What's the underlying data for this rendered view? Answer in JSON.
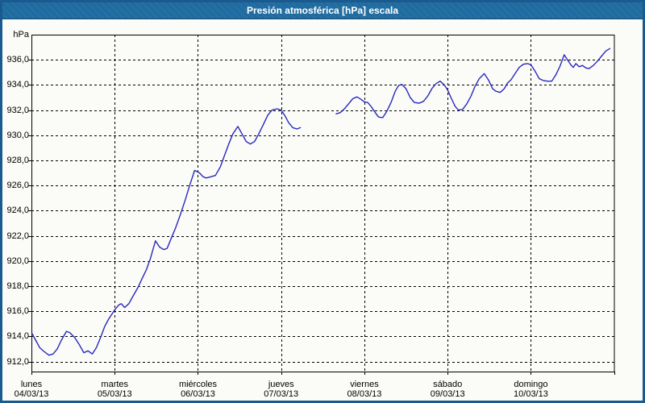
{
  "window": {
    "title": "Presión atmosférica [hPa] escala"
  },
  "chart_data": {
    "type": "line",
    "title": "Presión atmosférica [hPa] escala",
    "xlabel": "",
    "ylabel": "hPa",
    "ylim": [
      911.2,
      938.0
    ],
    "xlim_days": [
      0,
      7
    ],
    "grid": true,
    "legend": "none",
    "line_color": "#2828be",
    "grid_color": "#000000",
    "y_ticks": [
      912,
      914,
      916,
      918,
      920,
      922,
      924,
      926,
      928,
      930,
      932,
      934,
      936
    ],
    "y_tick_labels": [
      "912,0",
      "914,0",
      "916,0",
      "918,0",
      "920,0",
      "922,0",
      "924,0",
      "926,0",
      "928,0",
      "930,0",
      "932,0",
      "934,0",
      "936,0"
    ],
    "x_ticks": [
      {
        "day": "lunes",
        "date": "04/03/13"
      },
      {
        "day": "martes",
        "date": "05/03/13"
      },
      {
        "day": "miércoles",
        "date": "06/03/13"
      },
      {
        "day": "jueves",
        "date": "07/03/13"
      },
      {
        "day": "viernes",
        "date": "08/03/13"
      },
      {
        "day": "sábado",
        "date": "09/03/13"
      },
      {
        "day": "domingo",
        "date": "10/03/13"
      }
    ],
    "series": [
      {
        "name": "Presión atmosférica",
        "note": "x in days from lunes 04/03/13 00:00; gap in data on jueves ~05h-16h",
        "segments": [
          [
            [
              0.01,
              914.2
            ],
            [
              0.05,
              913.7
            ],
            [
              0.1,
              913.1
            ],
            [
              0.15,
              912.8
            ],
            [
              0.21,
              912.5
            ],
            [
              0.26,
              912.6
            ],
            [
              0.31,
              913.0
            ],
            [
              0.36,
              913.7
            ],
            [
              0.42,
              914.4
            ],
            [
              0.46,
              914.3
            ],
            [
              0.52,
              913.9
            ],
            [
              0.57,
              913.4
            ],
            [
              0.63,
              912.7
            ],
            [
              0.68,
              912.85
            ],
            [
              0.73,
              912.6
            ],
            [
              0.78,
              913.1
            ],
            [
              0.83,
              913.9
            ],
            [
              0.88,
              914.8
            ],
            [
              0.93,
              915.4
            ],
            [
              1.0,
              916.1
            ],
            [
              1.05,
              916.5
            ],
            [
              1.08,
              916.6
            ],
            [
              1.12,
              916.3
            ],
            [
              1.17,
              916.6
            ],
            [
              1.22,
              917.2
            ],
            [
              1.28,
              917.9
            ],
            [
              1.33,
              918.6
            ],
            [
              1.38,
              919.3
            ],
            [
              1.43,
              920.2
            ],
            [
              1.49,
              921.6
            ],
            [
              1.54,
              921.1
            ],
            [
              1.59,
              920.9
            ],
            [
              1.63,
              921.0
            ],
            [
              1.68,
              921.8
            ],
            [
              1.73,
              922.6
            ],
            [
              1.79,
              923.7
            ],
            [
              1.85,
              924.9
            ],
            [
              1.9,
              926.0
            ],
            [
              1.96,
              927.2
            ],
            [
              2.02,
              927.0
            ],
            [
              2.06,
              926.7
            ],
            [
              2.1,
              926.6
            ],
            [
              2.16,
              926.7
            ],
            [
              2.21,
              926.8
            ],
            [
              2.27,
              927.5
            ],
            [
              2.32,
              928.4
            ],
            [
              2.37,
              929.3
            ],
            [
              2.42,
              930.1
            ],
            [
              2.48,
              930.7
            ],
            [
              2.53,
              930.1
            ],
            [
              2.58,
              929.5
            ],
            [
              2.63,
              929.3
            ],
            [
              2.68,
              929.5
            ],
            [
              2.73,
              930.1
            ],
            [
              2.79,
              930.9
            ],
            [
              2.84,
              931.6
            ],
            [
              2.89,
              932.0
            ],
            [
              2.95,
              932.1
            ],
            [
              3.0,
              932.0
            ],
            [
              3.05,
              931.5
            ],
            [
              3.09,
              931.0
            ],
            [
              3.14,
              930.6
            ],
            [
              3.19,
              930.5
            ],
            [
              3.23,
              930.6
            ]
          ],
          [
            [
              3.66,
              931.7
            ],
            [
              3.71,
              931.8
            ],
            [
              3.76,
              932.1
            ],
            [
              3.81,
              932.5
            ],
            [
              3.86,
              932.9
            ],
            [
              3.91,
              933.05
            ],
            [
              3.96,
              932.85
            ],
            [
              4.0,
              932.65
            ],
            [
              4.04,
              932.6
            ],
            [
              4.08,
              932.3
            ],
            [
              4.13,
              931.8
            ],
            [
              4.17,
              931.45
            ],
            [
              4.22,
              931.4
            ],
            [
              4.27,
              931.9
            ],
            [
              4.32,
              932.6
            ],
            [
              4.37,
              933.5
            ],
            [
              4.41,
              933.95
            ],
            [
              4.45,
              934.05
            ],
            [
              4.5,
              933.7
            ],
            [
              4.55,
              933.0
            ],
            [
              4.6,
              932.6
            ],
            [
              4.66,
              932.55
            ],
            [
              4.71,
              932.7
            ],
            [
              4.76,
              933.1
            ],
            [
              4.81,
              933.7
            ],
            [
              4.86,
              934.1
            ],
            [
              4.91,
              934.3
            ],
            [
              4.96,
              934.0
            ],
            [
              5.0,
              933.6
            ],
            [
              5.04,
              933.0
            ],
            [
              5.09,
              932.3
            ],
            [
              5.13,
              932.0
            ],
            [
              5.18,
              932.05
            ],
            [
              5.23,
              932.5
            ],
            [
              5.28,
              933.1
            ],
            [
              5.33,
              933.9
            ],
            [
              5.38,
              934.5
            ],
            [
              5.44,
              934.9
            ],
            [
              5.49,
              934.4
            ],
            [
              5.54,
              933.7
            ],
            [
              5.58,
              933.5
            ],
            [
              5.63,
              933.4
            ],
            [
              5.68,
              933.7
            ],
            [
              5.72,
              934.15
            ],
            [
              5.76,
              934.4
            ],
            [
              5.81,
              934.9
            ],
            [
              5.86,
              935.4
            ],
            [
              5.91,
              935.65
            ],
            [
              5.96,
              935.7
            ],
            [
              6.0,
              935.6
            ],
            [
              6.05,
              935.1
            ],
            [
              6.1,
              934.5
            ],
            [
              6.15,
              934.35
            ],
            [
              6.2,
              934.3
            ],
            [
              6.25,
              934.3
            ],
            [
              6.3,
              934.8
            ],
            [
              6.35,
              935.5
            ],
            [
              6.4,
              936.4
            ],
            [
              6.44,
              936.0
            ],
            [
              6.48,
              935.6
            ],
            [
              6.51,
              935.4
            ],
            [
              6.54,
              935.7
            ],
            [
              6.58,
              935.45
            ],
            [
              6.62,
              935.55
            ],
            [
              6.66,
              935.35
            ],
            [
              6.7,
              935.3
            ],
            [
              6.75,
              935.55
            ],
            [
              6.8,
              935.9
            ],
            [
              6.85,
              936.3
            ],
            [
              6.9,
              936.7
            ],
            [
              6.95,
              936.9
            ]
          ]
        ]
      }
    ]
  }
}
